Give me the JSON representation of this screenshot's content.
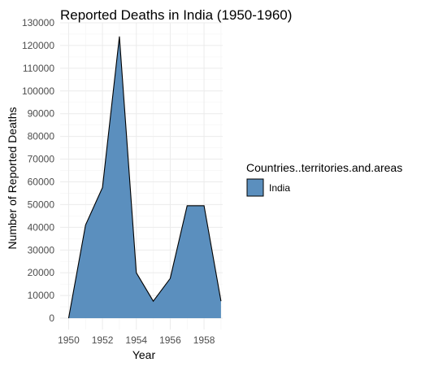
{
  "chart_data": {
    "type": "area",
    "title": "Reported Deaths in India (1950-1960)",
    "xlabel": "Year",
    "ylabel": "Number of Reported Deaths",
    "x": [
      1950,
      1951,
      1952,
      1953,
      1954,
      1955,
      1956,
      1957,
      1958,
      1959
    ],
    "series": [
      {
        "name": "India",
        "values": [
          0,
          41000,
          57500,
          124000,
          20000,
          7500,
          17500,
          49500,
          49500,
          7500
        ]
      }
    ],
    "xlim": [
      1949.5,
      1959.1
    ],
    "ylim": [
      -5000,
      130000
    ],
    "x_ticks": [
      1950,
      1952,
      1954,
      1956,
      1958
    ],
    "y_ticks": [
      0,
      10000,
      20000,
      30000,
      40000,
      50000,
      60000,
      70000,
      80000,
      90000,
      100000,
      110000,
      120000,
      130000
    ],
    "grid": true,
    "legend": {
      "title": "Countries..territories.and.areas",
      "position": "right"
    },
    "fill_color": "#5b8fbe",
    "line_color": "#000000"
  }
}
